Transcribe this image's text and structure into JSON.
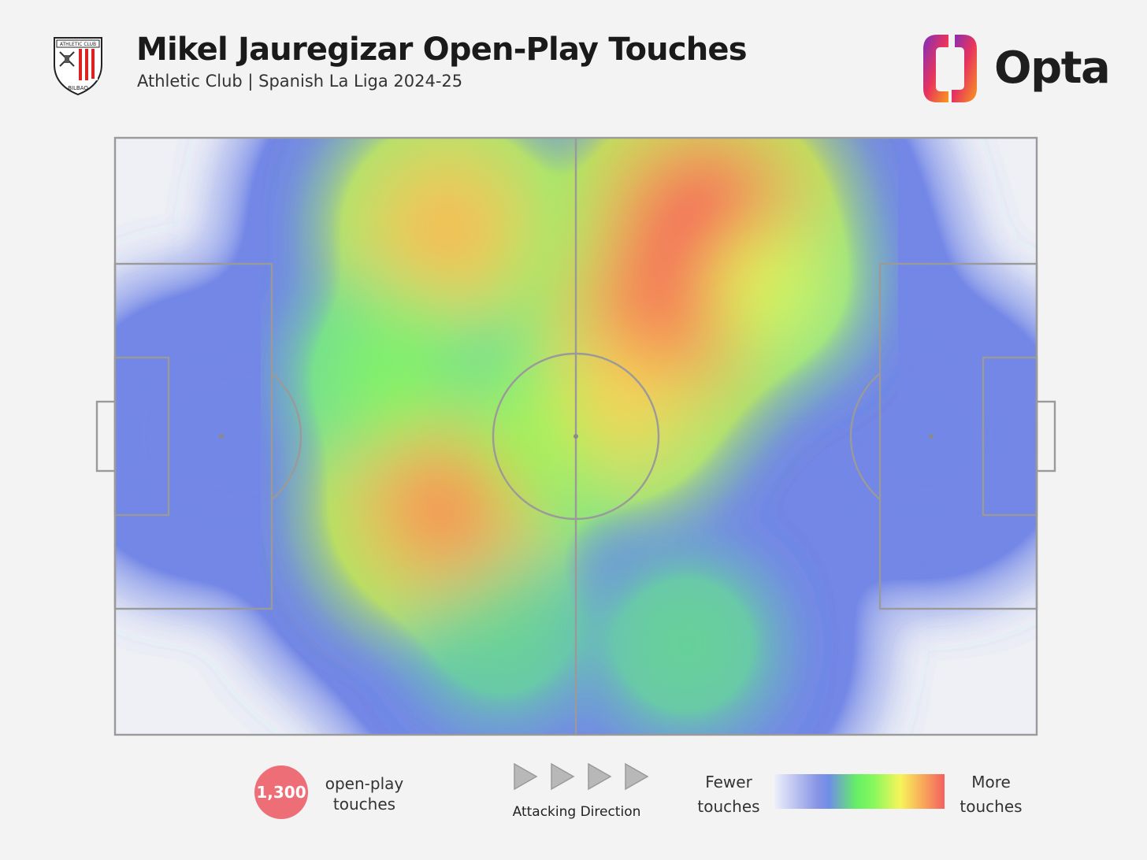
{
  "header": {
    "title": "Mikel Jauregizar Open-Play Touches",
    "subtitle": "Athletic Club | Spanish La Liga 2024-25",
    "crest_text_top": "ATHLETIC CLUB",
    "crest_text_bottom": "BILBAO",
    "brand": "Opta"
  },
  "legend": {
    "count_value": "1,300",
    "count_label_line1": "open-play",
    "count_label_line2": "touches",
    "direction_label": "Attacking Direction",
    "fewer_line1": "Fewer",
    "fewer_line2": "touches",
    "more_line1": "More",
    "more_line2": "touches"
  },
  "colors": {
    "background": "#f3f3f3",
    "pitch_lines": "#9a9a9a",
    "badge": "#ee6e78",
    "arrow_fill": "#b8b8b8",
    "opta_gradient": [
      "#7b2fbf",
      "#e8335e",
      "#f79a1c"
    ]
  },
  "chart_data": {
    "type": "heatmap",
    "title": "Mikel Jauregizar Open-Play Touches",
    "subtitle": "Athletic Club | Spanish La Liga 2024-25",
    "total_touches": 1300,
    "x_range": [
      0,
      100
    ],
    "y_range": [
      0,
      100
    ],
    "attacking_direction": "left-to-right",
    "color_scale": [
      "Fewer touches",
      "More touches"
    ],
    "hotspots": [
      {
        "x": 35.5,
        "y": 62,
        "intensity": 0.85
      },
      {
        "x": 36,
        "y": 15,
        "intensity": 0.78
      },
      {
        "x": 59,
        "y": 30,
        "intensity": 0.9
      },
      {
        "x": 55,
        "y": 44,
        "intensity": 0.72
      },
      {
        "x": 64,
        "y": 15,
        "intensity": 1.0
      },
      {
        "x": 70,
        "y": 24,
        "intensity": 0.62
      },
      {
        "x": 45,
        "y": 50,
        "intensity": 0.6
      },
      {
        "x": 30,
        "y": 40,
        "intensity": 0.55
      },
      {
        "x": 42,
        "y": 82,
        "intensity": 0.45
      },
      {
        "x": 62,
        "y": 85,
        "intensity": 0.45
      },
      {
        "x": 10,
        "y": 50,
        "intensity": 0.2
      },
      {
        "x": 88,
        "y": 50,
        "intensity": 0.2
      }
    ]
  }
}
